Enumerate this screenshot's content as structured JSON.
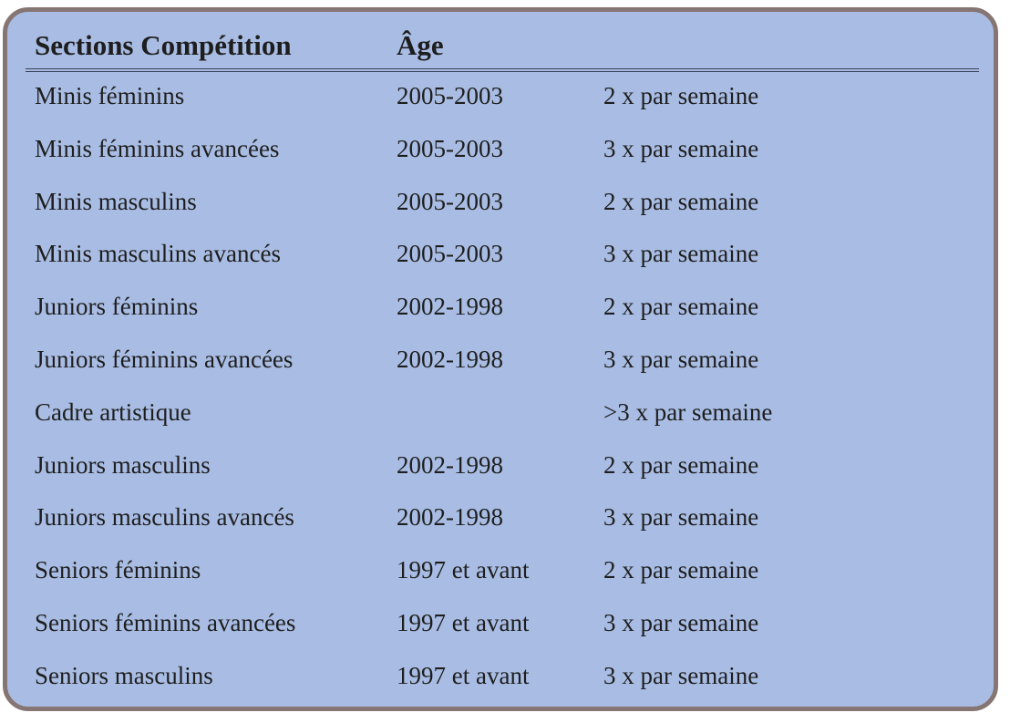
{
  "table": {
    "headers": [
      "Sections Compétition",
      "Âge"
    ],
    "rows": [
      {
        "section": "Minis féminins",
        "age": "2005-2003",
        "frequency": "2 x par semaine"
      },
      {
        "section": "Minis féminins avancées",
        "age": "2005-2003",
        "frequency": "3 x par semaine"
      },
      {
        "section": "Minis masculins",
        "age": "2005-2003",
        "frequency": "2 x par semaine"
      },
      {
        "section": "Minis masculins avancés",
        "age": "2005-2003",
        "frequency": "3 x par semaine"
      },
      {
        "section": "Juniors féminins",
        "age": "2002-1998",
        "frequency": "2 x par semaine"
      },
      {
        "section": "Juniors féminins avancées",
        "age": "2002-1998",
        "frequency": "3 x par semaine"
      },
      {
        "section": "Cadre artistique",
        "frequency": ">3 x par semaine"
      },
      {
        "section": "Juniors masculins",
        "age": "2002-1998",
        "frequency": "2 x par semaine"
      },
      {
        "section": "Juniors masculins avancés",
        "age": "2002-1998",
        "frequency": "3 x par semaine"
      },
      {
        "section": "Seniors féminins",
        "age": "1997 et avant",
        "frequency": "2 x par semaine"
      },
      {
        "section": "Seniors féminins avancées",
        "age": "1997 et avant",
        "frequency": "3 x par semaine"
      },
      {
        "section": "Seniors masculins",
        "age": "1997 et avant",
        "frequency": "3 x par semaine"
      }
    ]
  }
}
